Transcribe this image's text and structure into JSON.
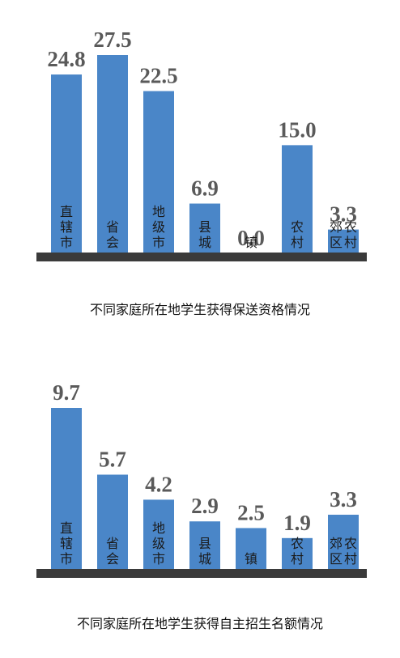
{
  "chart_data": [
    {
      "type": "bar",
      "title": "不同家庭所在地学生获得保送资格情况",
      "categories": [
        "直辖市",
        "省会",
        "地级市",
        "县城",
        "镇",
        "农村",
        "郊区农村"
      ],
      "values": [
        24.8,
        27.5,
        22.5,
        6.9,
        0.0,
        15.0,
        3.3
      ],
      "value_labels": [
        "24.8",
        "27.5",
        "22.5",
        "6.9",
        "0.0",
        "15.0",
        "3.3"
      ],
      "color": "#4a86c8"
    },
    {
      "type": "bar",
      "title": "不同家庭所在地学生获得自主招生名额情况",
      "categories": [
        "直辖市",
        "省会",
        "地级市",
        "县城",
        "镇",
        "农村",
        "郊区农村"
      ],
      "values": [
        9.7,
        5.7,
        4.2,
        2.9,
        2.5,
        1.9,
        3.3
      ],
      "value_labels": [
        "9.7",
        "5.7",
        "4.2",
        "2.9",
        "2.5",
        "1.9",
        "3.3"
      ],
      "color": "#4a86c8"
    }
  ]
}
